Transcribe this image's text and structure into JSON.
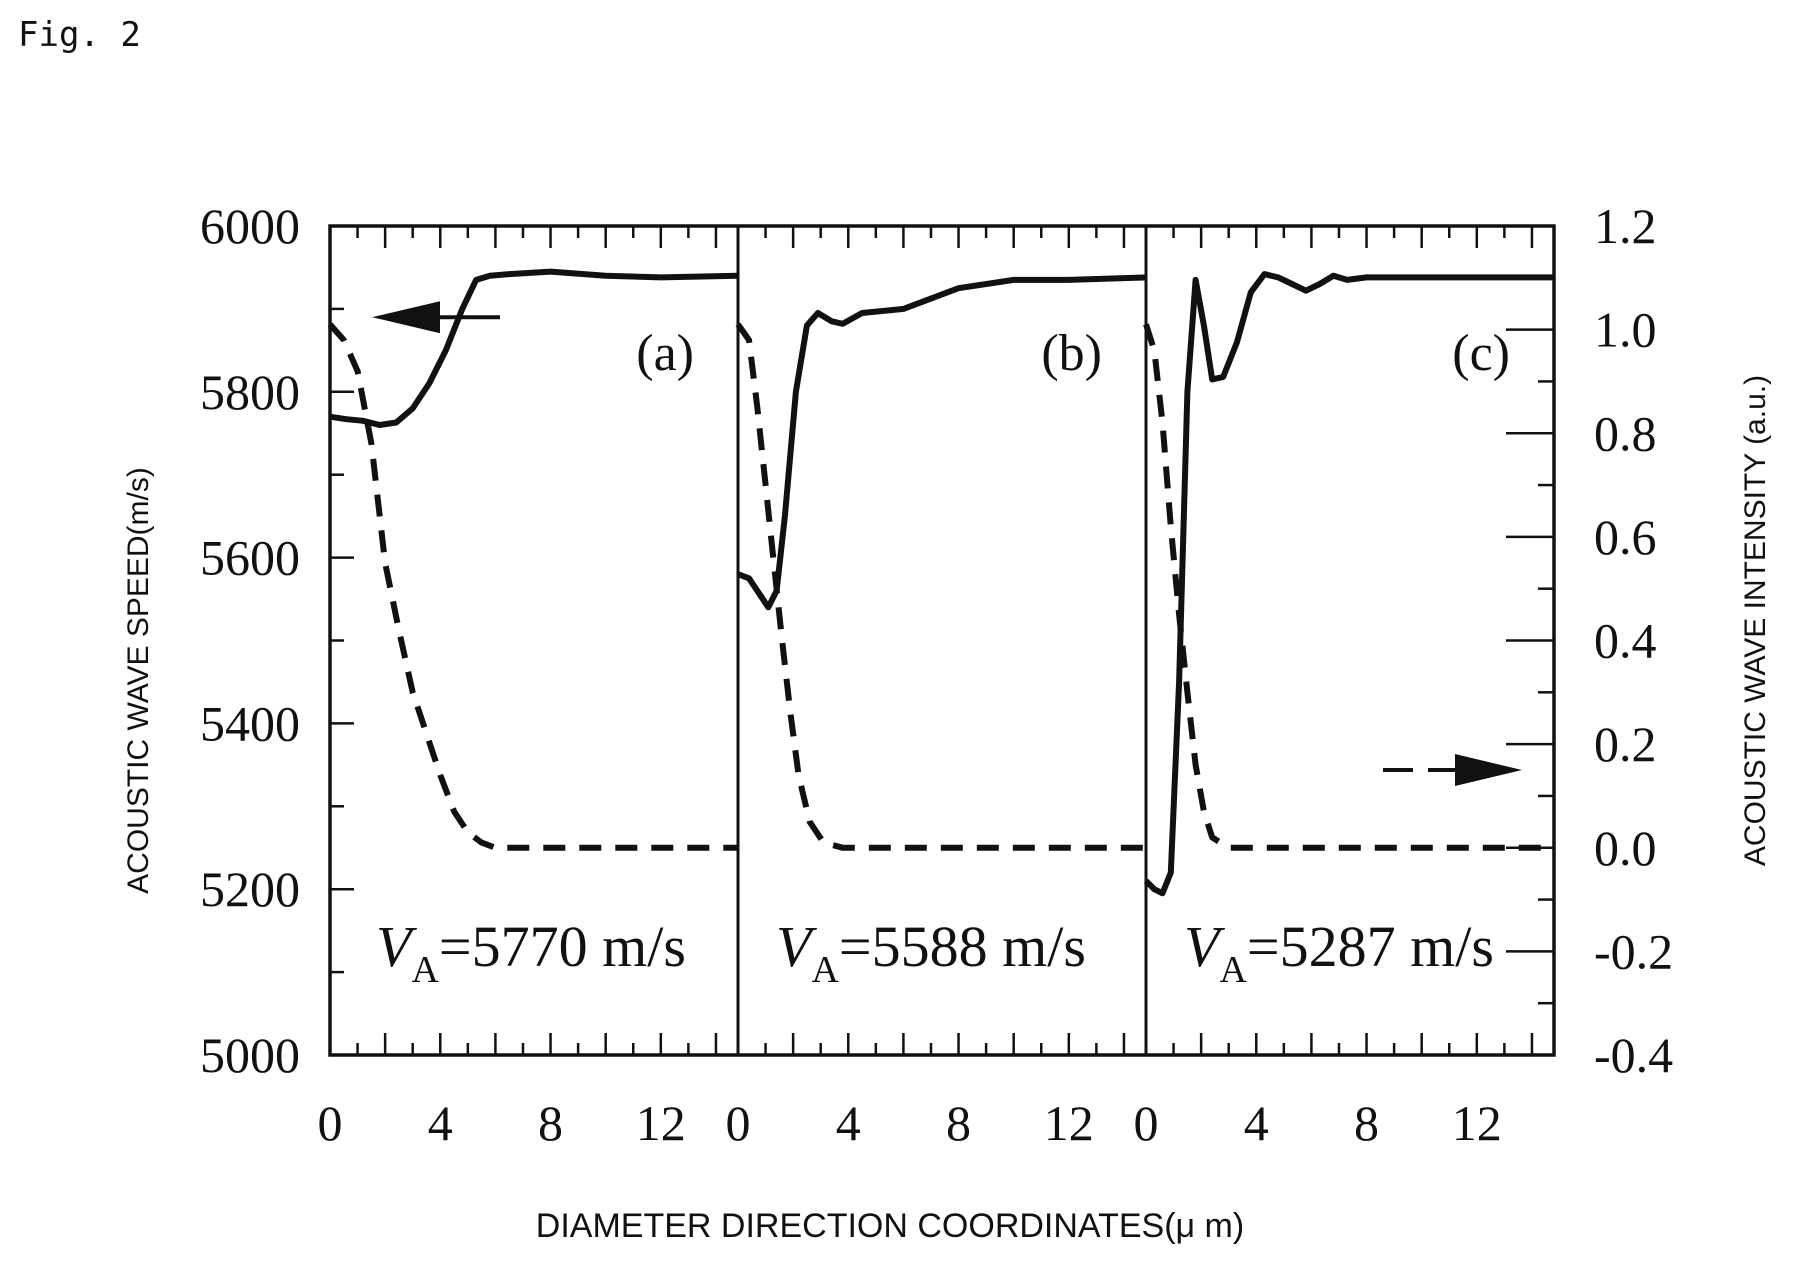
{
  "figure_label": "Fig. 2",
  "chart_data": {
    "type": "line",
    "xlabel": "DIAMETER DIRECTION COORDINATES(μ m)",
    "ylabel_left": "ACOUSTIC WAVE SPEED(m/s)",
    "ylabel_right": "ACOUSTIC WAVE INTENSITY (a.u.)",
    "ylim_left": [
      5000,
      6000
    ],
    "ylim_right": [
      -0.4,
      1.2
    ],
    "xlim": [
      0,
      14.8
    ],
    "x_ticklabels": [
      "0",
      "4",
      "8",
      "12"
    ],
    "y_ticklabels_left": [
      "5000",
      "5200",
      "5400",
      "5600",
      "5800",
      "6000"
    ],
    "y_ticklabels_right": [
      "-0.4",
      "-0.2",
      "0.0",
      "0.2",
      "0.4",
      "0.6",
      "0.8",
      "1.0",
      "1.2"
    ],
    "grid": false,
    "panels": [
      {
        "id": "a",
        "label": "(a)",
        "va_symbol": "V",
        "va_sub": "A",
        "va_value": "=5770 m/s",
        "arrow": "left",
        "speed": [
          [
            0,
            5770
          ],
          [
            0.6,
            5767
          ],
          [
            1.2,
            5765
          ],
          [
            1.8,
            5760
          ],
          [
            2.4,
            5763
          ],
          [
            3.0,
            5780
          ],
          [
            3.6,
            5810
          ],
          [
            4.2,
            5850
          ],
          [
            4.8,
            5900
          ],
          [
            5.3,
            5935
          ],
          [
            5.8,
            5940
          ],
          [
            6.5,
            5942
          ],
          [
            8,
            5945
          ],
          [
            10,
            5940
          ],
          [
            12,
            5938
          ],
          [
            14.8,
            5940
          ]
        ],
        "intensity": [
          [
            0,
            1.01
          ],
          [
            0.5,
            0.98
          ],
          [
            1.0,
            0.92
          ],
          [
            1.5,
            0.78
          ],
          [
            2.0,
            0.55
          ],
          [
            2.5,
            0.42
          ],
          [
            3.0,
            0.3
          ],
          [
            3.5,
            0.22
          ],
          [
            4.0,
            0.14
          ],
          [
            4.5,
            0.07
          ],
          [
            5.0,
            0.03
          ],
          [
            5.5,
            0.01
          ],
          [
            6.0,
            0.0
          ],
          [
            8,
            0.0
          ],
          [
            14.8,
            0.0
          ]
        ]
      },
      {
        "id": "b",
        "label": "(b)",
        "va_symbol": "V",
        "va_sub": "A",
        "va_value": "=5588 m/s",
        "arrow": "",
        "speed": [
          [
            0,
            5580
          ],
          [
            0.4,
            5575
          ],
          [
            0.8,
            5555
          ],
          [
            1.1,
            5540
          ],
          [
            1.4,
            5560
          ],
          [
            1.7,
            5650
          ],
          [
            2.1,
            5800
          ],
          [
            2.5,
            5880
          ],
          [
            2.9,
            5895
          ],
          [
            3.4,
            5885
          ],
          [
            3.8,
            5882
          ],
          [
            4.5,
            5895
          ],
          [
            6,
            5900
          ],
          [
            8,
            5925
          ],
          [
            10,
            5935
          ],
          [
            12,
            5935
          ],
          [
            14.8,
            5938
          ]
        ],
        "intensity": [
          [
            0,
            1.01
          ],
          [
            0.4,
            0.98
          ],
          [
            0.7,
            0.85
          ],
          [
            1.0,
            0.7
          ],
          [
            1.3,
            0.55
          ],
          [
            1.6,
            0.4
          ],
          [
            1.9,
            0.26
          ],
          [
            2.2,
            0.14
          ],
          [
            2.6,
            0.05
          ],
          [
            3.1,
            0.01
          ],
          [
            3.8,
            0.0
          ],
          [
            6,
            0.0
          ],
          [
            14.8,
            0.0
          ]
        ]
      },
      {
        "id": "c",
        "label": "(c)",
        "va_symbol": "V",
        "va_sub": "A",
        "va_value": "=5287 m/s",
        "arrow": "right",
        "speed": [
          [
            0,
            5210
          ],
          [
            0.3,
            5200
          ],
          [
            0.6,
            5195
          ],
          [
            0.9,
            5220
          ],
          [
            1.2,
            5450
          ],
          [
            1.5,
            5800
          ],
          [
            1.8,
            5935
          ],
          [
            2.1,
            5880
          ],
          [
            2.4,
            5815
          ],
          [
            2.8,
            5818
          ],
          [
            3.3,
            5860
          ],
          [
            3.8,
            5920
          ],
          [
            4.3,
            5942
          ],
          [
            4.8,
            5938
          ],
          [
            5.3,
            5930
          ],
          [
            5.8,
            5922
          ],
          [
            6.3,
            5930
          ],
          [
            6.8,
            5940
          ],
          [
            7.3,
            5935
          ],
          [
            8,
            5938
          ],
          [
            10,
            5938
          ],
          [
            12,
            5938
          ],
          [
            14.8,
            5938
          ]
        ],
        "intensity": [
          [
            0,
            1.01
          ],
          [
            0.3,
            0.96
          ],
          [
            0.6,
            0.82
          ],
          [
            0.9,
            0.62
          ],
          [
            1.2,
            0.45
          ],
          [
            1.5,
            0.3
          ],
          [
            1.8,
            0.16
          ],
          [
            2.1,
            0.07
          ],
          [
            2.4,
            0.02
          ],
          [
            3.0,
            0.0
          ],
          [
            5,
            0.0
          ],
          [
            8,
            0.0
          ],
          [
            14.8,
            0.0
          ]
        ]
      }
    ]
  }
}
